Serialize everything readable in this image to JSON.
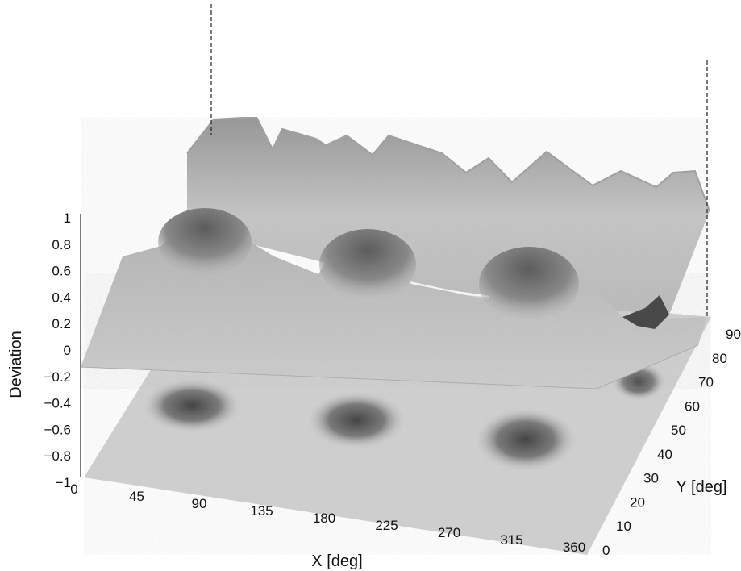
{
  "chart_data": {
    "type": "surface3d",
    "title": "",
    "xlabel": "X [deg]",
    "ylabel": "Y [deg]",
    "zlabel": "Deviation",
    "xticks": [
      "0",
      "45",
      "90",
      "135",
      "180",
      "225",
      "270",
      "315",
      "360"
    ],
    "yticks": [
      "0",
      "10",
      "20",
      "30",
      "40",
      "50",
      "60",
      "70",
      "80",
      "90"
    ],
    "zticks": [
      "1",
      "0.8",
      "0.6",
      "0.4",
      "0.2",
      "0",
      "−0.2",
      "−0.4",
      "−0.6",
      "−0.8",
      "−1"
    ],
    "xlim": [
      0,
      360
    ],
    "ylim": [
      0,
      90
    ],
    "zlim": [
      -1,
      1
    ],
    "grid": false,
    "colormap": "grayscale",
    "description_of_surfaces": [
      {
        "name": "mesh",
        "feature": "periodic ridges near x = 60, 180, 300 deg; rises steeply near y = 80-90 deg",
        "z_range": [
          0,
          1
        ]
      },
      {
        "name": "floor projection",
        "z": -1,
        "feature": "dark patches at x approx 60, 180, 300 deg, y approx 40-50 deg"
      }
    ],
    "peaks": [
      {
        "x": 60,
        "y": 45
      },
      {
        "x": 180,
        "y": 45
      },
      {
        "x": 300,
        "y": 45
      }
    ]
  }
}
